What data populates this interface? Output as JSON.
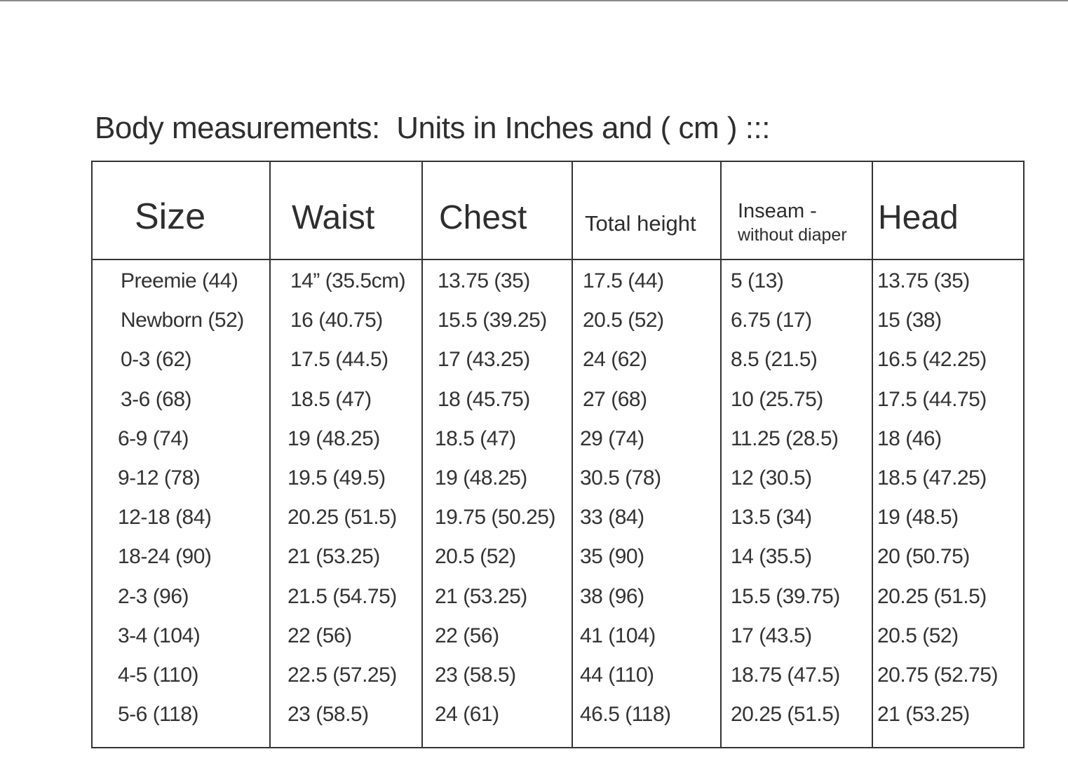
{
  "title": "Body measurements:  Units in Inches and ( cm ) :::",
  "headers": {
    "size": "Size",
    "waist": "Waist",
    "chest": "Chest",
    "total_height": "Total height",
    "inseam": "Inseam -",
    "inseam_sub": "without diaper",
    "head": "Head"
  },
  "rows": [
    [
      "Preemie (44)",
      "14” (35.5cm)",
      "13.75 (35)",
      "17.5 (44)",
      "5 (13)",
      "13.75 (35)"
    ],
    [
      "Newborn (52)",
      "16 (40.75)",
      "15.5 (39.25)",
      "20.5 (52)",
      "6.75 (17)",
      "15 (38)"
    ],
    [
      "0-3 (62)",
      "17.5 (44.5)",
      "17 (43.25)",
      "24 (62)",
      "8.5 (21.5)",
      "16.5 (42.25)"
    ],
    [
      "3-6 (68)",
      "18.5 (47)",
      "18 (45.75)",
      "27 (68)",
      "10 (25.75)",
      "17.5 (44.75)"
    ],
    [
      "6-9 (74)",
      "19 (48.25)",
      "18.5 (47)",
      "29 (74)",
      "11.25 (28.5)",
      "18 (46)"
    ],
    [
      "9-12 (78)",
      "19.5 (49.5)",
      "19 (48.25)",
      "30.5 (78)",
      "12 (30.5)",
      "18.5 (47.25)"
    ],
    [
      "12-18 (84)",
      "20.25 (51.5)",
      "19.75 (50.25)",
      "33 (84)",
      "13.5 (34)",
      "19 (48.5)"
    ],
    [
      "18-24 (90)",
      "21 (53.25)",
      "20.5 (52)",
      "35 (90)",
      "14 (35.5)",
      "20 (50.75)"
    ],
    [
      "2-3 (96)",
      "21.5 (54.75)",
      "21 (53.25)",
      "38 (96)",
      "15.5 (39.75)",
      "20.25 (51.5)"
    ],
    [
      "3-4 (104)",
      "22 (56)",
      "22 (56)",
      "41 (104)",
      "17 (43.5)",
      "20.5 (52)"
    ],
    [
      "4-5 (110)",
      "22.5 (57.25)",
      "23 (58.5)",
      "44 (110)",
      "18.75 (47.5)",
      "20.75 (52.75)"
    ],
    [
      "5-6 (118)",
      "23 (58.5)",
      "24 (61)",
      "46.5 (118)",
      "20.25 (51.5)",
      "21 (53.25)"
    ]
  ]
}
